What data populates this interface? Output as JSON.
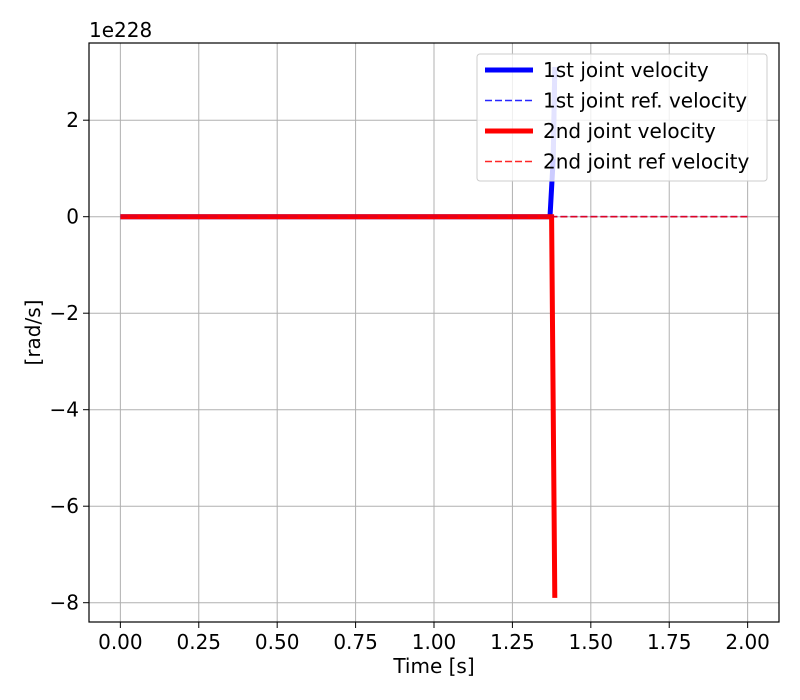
{
  "chart_data": {
    "type": "line",
    "xlabel": "Time [s]",
    "ylabel": "[rad/s]",
    "offset_text": "1e228",
    "xlim": [
      -0.1,
      2.1
    ],
    "ylim": [
      -8.4,
      3.6
    ],
    "xticks": [
      0.0,
      0.25,
      0.5,
      0.75,
      1.0,
      1.25,
      1.5,
      1.75,
      2.0
    ],
    "xtick_labels": [
      "0.00",
      "0.25",
      "0.50",
      "0.75",
      "1.00",
      "1.25",
      "1.50",
      "1.75",
      "2.00"
    ],
    "yticks": [
      2,
      0,
      -2,
      -4,
      -6,
      -8
    ],
    "ytick_labels": [
      "2",
      "0",
      "−2",
      "−4",
      "−6",
      "−8"
    ],
    "grid": true,
    "legend_position": "top-right",
    "series": [
      {
        "name": "1st joint velocity",
        "color": "#0000ff",
        "style": "solid",
        "x": [
          0.0,
          1.37,
          1.38,
          1.385
        ],
        "y": [
          0.0,
          0.0,
          1.2,
          3.1
        ]
      },
      {
        "name": "1st joint ref. velocity",
        "color": "#0000ff",
        "style": "dashed",
        "x": [
          0.0,
          2.0
        ],
        "y": [
          0.0,
          0.0
        ]
      },
      {
        "name": "2nd joint velocity",
        "color": "#ff0000",
        "style": "solid",
        "x": [
          0.0,
          1.375,
          1.385
        ],
        "y": [
          0.0,
          0.0,
          -7.9
        ]
      },
      {
        "name": "2nd joint ref velocity",
        "color": "#ff0000",
        "style": "dashed",
        "x": [
          0.0,
          2.0
        ],
        "y": [
          0.0,
          0.0
        ]
      }
    ]
  }
}
